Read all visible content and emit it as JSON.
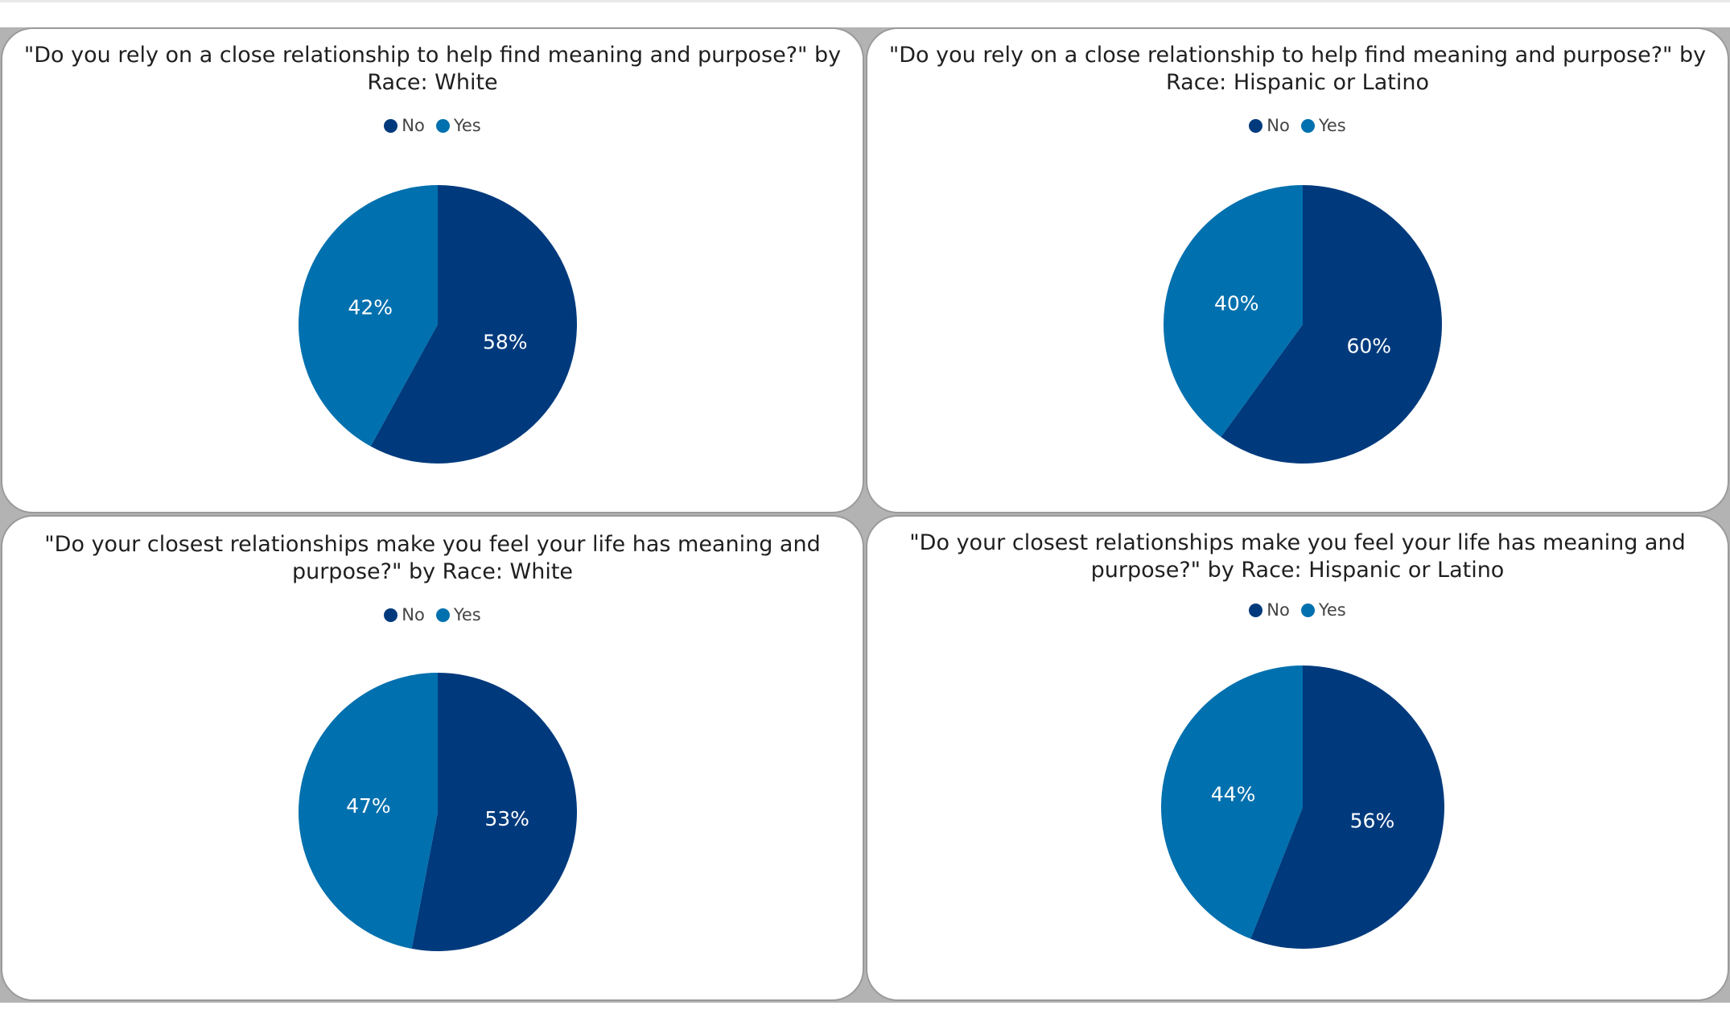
{
  "colors": {
    "no": "#003a7d",
    "yes": "#0070ae"
  },
  "chart_data": [
    {
      "type": "pie",
      "title": "\"Do you rely on a close relationship to help find meaning and purpose?\" by Race: White",
      "legend": [
        "No",
        "Yes"
      ],
      "legend_position": "top",
      "categories": [
        "No",
        "Yes"
      ],
      "values": [
        58,
        42
      ],
      "labels": [
        "58%",
        "42%"
      ]
    },
    {
      "type": "pie",
      "title": "\"Do you rely on a close relationship to help find meaning and purpose?\" by Race: Hispanic or Latino",
      "legend": [
        "No",
        "Yes"
      ],
      "legend_position": "top",
      "categories": [
        "No",
        "Yes"
      ],
      "values": [
        60,
        40
      ],
      "labels": [
        "60%",
        "40%"
      ]
    },
    {
      "type": "pie",
      "title": "\"Do your closest relationships make you feel your life has meaning and purpose?\" by Race: White",
      "legend": [
        "No",
        "Yes"
      ],
      "legend_position": "top",
      "categories": [
        "No",
        "Yes"
      ],
      "values": [
        53,
        47
      ],
      "labels": [
        "53%",
        "47%"
      ]
    },
    {
      "type": "pie",
      "title": "\"Do your closest relationships make you feel your life has meaning and purpose?\" by Race: Hispanic or Latino",
      "legend": [
        "No",
        "Yes"
      ],
      "legend_position": "top",
      "categories": [
        "No",
        "Yes"
      ],
      "values": [
        56,
        44
      ],
      "labels": [
        "56%",
        "44%"
      ]
    }
  ]
}
